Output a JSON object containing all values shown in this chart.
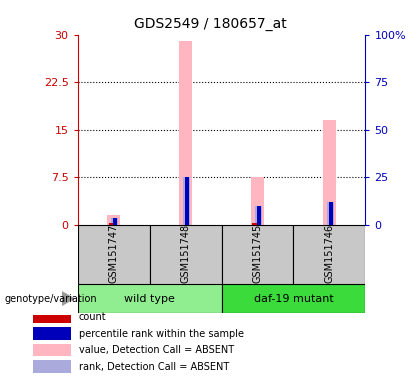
{
  "title": "GDS2549 / 180657_at",
  "samples": [
    "GSM151747",
    "GSM151748",
    "GSM151745",
    "GSM151746"
  ],
  "groups": [
    {
      "label": "wild type",
      "color": "#90EE90"
    },
    {
      "label": "daf-19 mutant",
      "color": "#3ADB3A"
    }
  ],
  "count_values": [
    0.18,
    0.0,
    0.18,
    0.0
  ],
  "percentile_values": [
    1.1,
    7.5,
    3.0,
    3.5
  ],
  "value_absent": [
    1.5,
    29.0,
    7.5,
    16.5
  ],
  "rank_absent": [
    1.1,
    7.5,
    3.0,
    3.5
  ],
  "ylim_left": [
    0,
    30
  ],
  "ylim_right": [
    0,
    100
  ],
  "yticks_left": [
    0,
    7.5,
    15,
    22.5,
    30
  ],
  "ytick_labels_left": [
    "0",
    "7.5",
    "15",
    "22.5",
    "30"
  ],
  "yticks_right": [
    0,
    25,
    50,
    75,
    100
  ],
  "ytick_labels_right": [
    "0",
    "25",
    "50",
    "75",
    "100%"
  ],
  "count_color": "#CC0000",
  "percentile_color": "#0000BB",
  "value_absent_color": "#FFB6C1",
  "rank_absent_color": "#AAAADD",
  "sample_bg": "#C8C8C8",
  "legend_items": [
    {
      "label": "count",
      "color": "#CC0000"
    },
    {
      "label": "percentile rank within the sample",
      "color": "#0000BB"
    },
    {
      "label": "value, Detection Call = ABSENT",
      "color": "#FFB6C1"
    },
    {
      "label": "rank, Detection Call = ABSENT",
      "color": "#AAAADD"
    }
  ]
}
